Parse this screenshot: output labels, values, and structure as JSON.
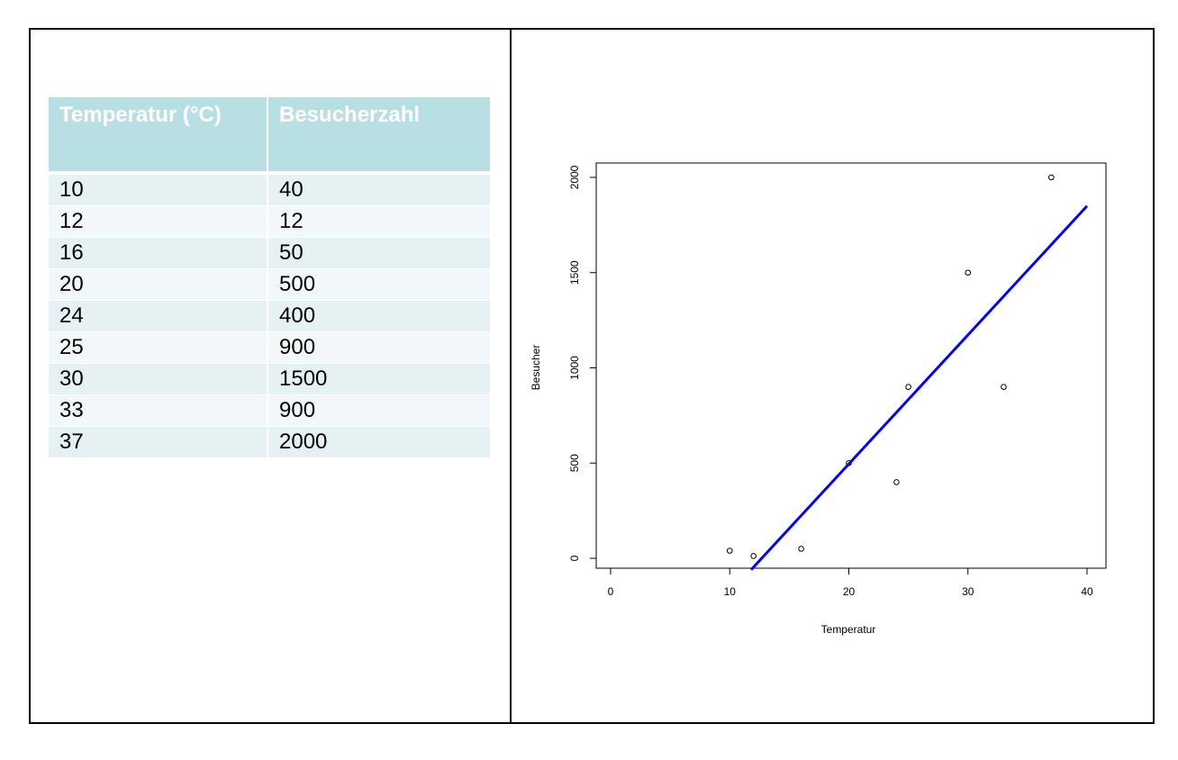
{
  "caption": "",
  "table": {
    "headers": [
      "Temperatur (°C)",
      "Besucherzahl"
    ],
    "rows": [
      [
        "10",
        "40"
      ],
      [
        "12",
        "12"
      ],
      [
        "16",
        "50"
      ],
      [
        "20",
        "500"
      ],
      [
        "24",
        "400"
      ],
      [
        "25",
        "900"
      ],
      [
        "30",
        "1500"
      ],
      [
        "33",
        "900"
      ],
      [
        "37",
        "2000"
      ]
    ]
  },
  "chart_data": {
    "type": "scatter",
    "xlabel": "Temperatur",
    "ylabel": "Besucher",
    "xlim": [
      0,
      40
    ],
    "ylim": [
      0,
      2000
    ],
    "xticks": [
      "0",
      "10",
      "20",
      "30",
      "40"
    ],
    "yticks": [
      "0",
      "500",
      "1000",
      "1500",
      "2000"
    ],
    "x": [
      10,
      12,
      16,
      20,
      24,
      25,
      30,
      33,
      37
    ],
    "y": [
      40,
      12,
      50,
      500,
      400,
      900,
      1500,
      900,
      2000
    ],
    "regression_line": {
      "from": [
        11.8,
        -60
      ],
      "to": [
        40,
        1850
      ],
      "color": "#0000ff"
    },
    "point_color": "#000000",
    "grid": false
  }
}
